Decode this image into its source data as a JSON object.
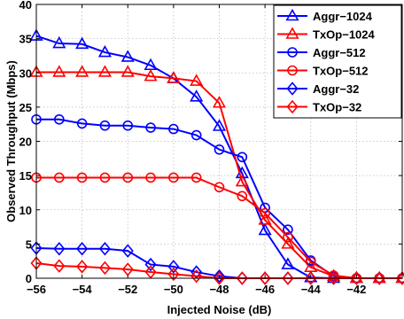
{
  "chart_data": {
    "type": "line",
    "xlabel": "Injected Noise (dB)",
    "ylabel": "Observed Throughput (Mbps)",
    "xlim": [
      -56,
      -40
    ],
    "ylim": [
      0,
      40
    ],
    "xticks": [
      -56,
      -54,
      -52,
      -50,
      -48,
      -46,
      -44,
      -42
    ],
    "yticks": [
      0,
      5,
      10,
      15,
      20,
      25,
      30,
      35,
      40
    ],
    "grid": true,
    "legend_position": "top-right",
    "x": [
      -56,
      -55,
      -54,
      -53,
      -52,
      -51,
      -50,
      -49,
      -48,
      -47,
      -46,
      -45,
      -44,
      -43,
      -42,
      -41,
      -40
    ],
    "series": [
      {
        "name": "Aggr−1024",
        "color": "#0000ff",
        "marker": "triangle",
        "values": [
          35.4,
          34.3,
          34.2,
          33.0,
          32.3,
          31.1,
          29.2,
          26.5,
          22.2,
          15.3,
          7.0,
          2.0,
          0.1,
          0.0,
          0.0,
          0.0,
          0.0
        ]
      },
      {
        "name": "TxOp−1024",
        "color": "#ff0000",
        "marker": "triangle",
        "values": [
          30.1,
          30.1,
          30.1,
          30.1,
          30.1,
          29.5,
          29.2,
          28.8,
          25.6,
          14.1,
          8.5,
          5.0,
          1.6,
          0.3,
          0.0,
          0.0,
          0.0
        ]
      },
      {
        "name": "Aggr−512",
        "color": "#0000ff",
        "marker": "circle",
        "values": [
          23.2,
          23.2,
          22.6,
          22.3,
          22.3,
          22.0,
          21.8,
          20.9,
          18.8,
          17.7,
          10.3,
          7.1,
          2.6,
          0.3,
          0.0,
          0.0,
          0.0
        ]
      },
      {
        "name": "TxOp−512",
        "color": "#ff0000",
        "marker": "circle",
        "values": [
          14.7,
          14.7,
          14.7,
          14.7,
          14.7,
          14.7,
          14.7,
          14.7,
          13.3,
          12.0,
          9.5,
          6.0,
          2.4,
          0.4,
          0.0,
          0.0,
          0.0
        ]
      },
      {
        "name": "Aggr−32",
        "color": "#0000ff",
        "marker": "diamond",
        "values": [
          4.4,
          4.3,
          4.3,
          4.3,
          4.0,
          2.0,
          1.7,
          0.9,
          0.3,
          0.0,
          0.0,
          0.0,
          0.0,
          0.0,
          0.0,
          0.0,
          0.0
        ]
      },
      {
        "name": "TxOp−32",
        "color": "#ff0000",
        "marker": "diamond",
        "values": [
          2.2,
          1.8,
          1.7,
          1.5,
          1.3,
          0.9,
          0.6,
          0.3,
          0.0,
          0.0,
          0.0,
          0.0,
          0.0,
          0.0,
          0.0,
          0.0,
          0.0
        ]
      }
    ]
  }
}
